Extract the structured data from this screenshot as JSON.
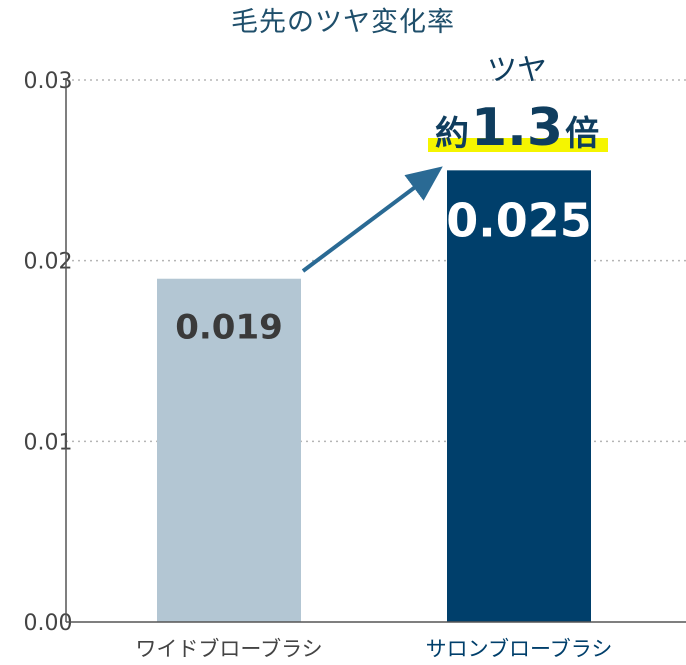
{
  "chart_data": {
    "type": "bar",
    "title": "毛先のツヤ変化率",
    "categories": [
      "ワイドブローブラシ",
      "サロンブローブラシ"
    ],
    "values": [
      0.019,
      0.025
    ],
    "value_labels": [
      "0.019",
      "0.025"
    ],
    "ylim": [
      0,
      0.03
    ],
    "yticks": [
      "0.00",
      "0.01",
      "0.02",
      "0.03"
    ],
    "grid": true,
    "colors": [
      "#b3c6d3",
      "#003f6b"
    ],
    "label_colors": [
      "#3a3a3a",
      "#ffffff"
    ],
    "category_label_colors": [
      "#444444",
      "#003f6b"
    ],
    "arrow_color": "#2a6a94",
    "highlight_color": "#f5f500",
    "annotation": {
      "line1": "ツヤ",
      "prefix": "約",
      "number": "1.3",
      "suffix": "倍"
    }
  }
}
